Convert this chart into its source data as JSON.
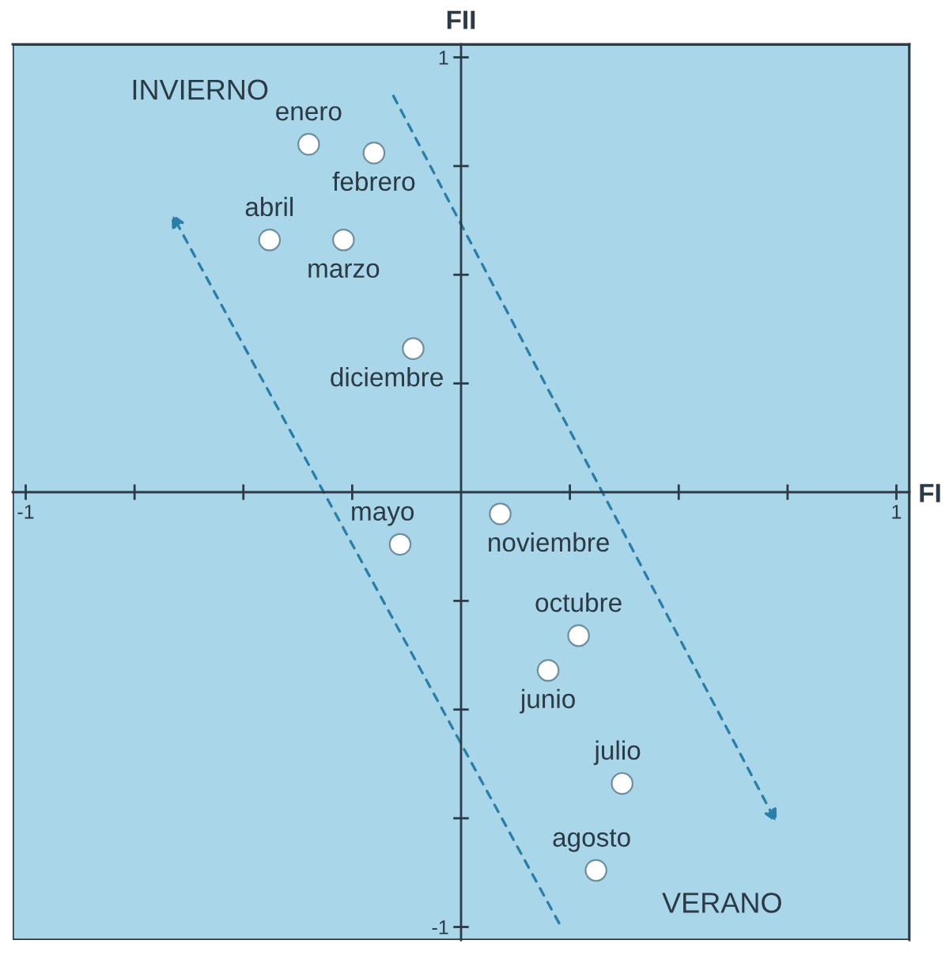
{
  "chart_data": {
    "type": "scatter",
    "xlabel": "FI",
    "ylabel": "FII",
    "xlim": [
      -1.03,
      1.03
    ],
    "ylim": [
      -1.03,
      1.03
    ],
    "xticks": [
      {
        "value": -1,
        "label": "-1"
      },
      {
        "value": -0.75,
        "label": null
      },
      {
        "value": -0.5,
        "label": null
      },
      {
        "value": -0.25,
        "label": null
      },
      {
        "value": 0.25,
        "label": null
      },
      {
        "value": 0.5,
        "label": null
      },
      {
        "value": 0.75,
        "label": null
      },
      {
        "value": 1,
        "label": "1"
      }
    ],
    "yticks": [
      {
        "value": -1,
        "label": "-1"
      },
      {
        "value": -0.75,
        "label": null
      },
      {
        "value": -0.5,
        "label": null
      },
      {
        "value": -0.25,
        "label": null
      },
      {
        "value": 0.25,
        "label": null
      },
      {
        "value": 0.5,
        "label": null
      },
      {
        "value": 0.75,
        "label": null
      },
      {
        "value": 1,
        "label": "1"
      }
    ],
    "marker": "circle",
    "annotations": [
      "INVIERNO",
      "VERANO"
    ],
    "series": [
      {
        "name": "enero",
        "color": "#ffffff",
        "x": [
          -0.35
        ],
        "values": [
          0.8
        ]
      },
      {
        "name": "febrero",
        "color": "#ffffff",
        "x": [
          -0.2
        ],
        "values": [
          0.78
        ]
      },
      {
        "name": "abril",
        "color": "#ffffff",
        "x": [
          -0.44
        ],
        "values": [
          0.58
        ]
      },
      {
        "name": "marzo",
        "color": "#ffffff",
        "x": [
          -0.27
        ],
        "values": [
          0.58
        ]
      },
      {
        "name": "diciembre",
        "color": "#ffffff",
        "x": [
          -0.11
        ],
        "values": [
          0.33
        ]
      },
      {
        "name": "mayo",
        "color": "#ffffff",
        "x": [
          -0.14
        ],
        "values": [
          -0.12
        ]
      },
      {
        "name": "noviembre",
        "color": "#ffffff",
        "x": [
          0.09
        ],
        "values": [
          -0.05
        ]
      },
      {
        "name": "octubre",
        "color": "#ffffff",
        "x": [
          0.27
        ],
        "values": [
          -0.33
        ]
      },
      {
        "name": "junio",
        "color": "#ffffff",
        "x": [
          0.2
        ],
        "values": [
          -0.41
        ]
      },
      {
        "name": "julio",
        "color": "#ffffff",
        "x": [
          0.37
        ],
        "values": [
          -0.67
        ]
      },
      {
        "name": "agosto",
        "color": "#ffffff",
        "x": [
          0.31
        ],
        "values": [
          -0.87
        ]
      }
    ]
  }
}
